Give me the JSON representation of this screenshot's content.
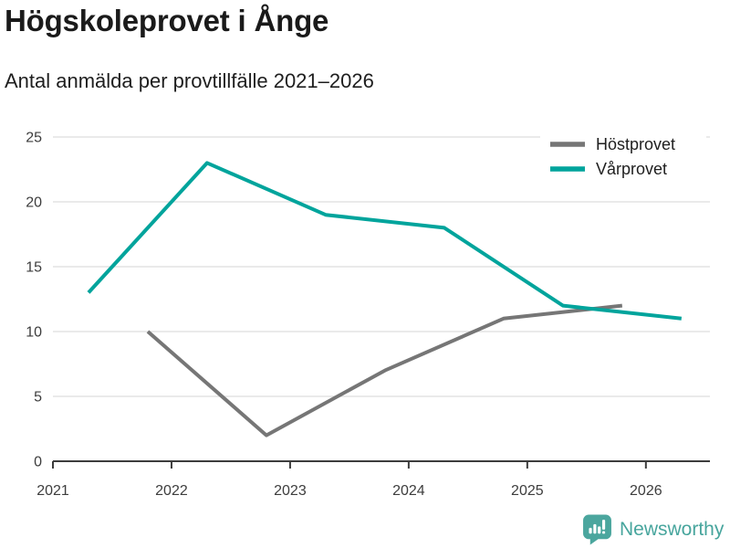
{
  "header": {
    "title": "Högskoleprovet i Ånge",
    "subtitle": "Antal anmälda per provtillfälle 2021–2026"
  },
  "chart_data": {
    "type": "line",
    "title": "Högskoleprovet i Ånge",
    "subtitle": "Antal anmälda per provtillfälle 2021–2026",
    "xlabel": "",
    "ylabel": "",
    "xlim": [
      2021,
      2026.54
    ],
    "ylim": [
      0,
      25
    ],
    "x_ticks": [
      2021,
      2022,
      2023,
      2024,
      2025,
      2026
    ],
    "y_ticks": [
      0,
      5,
      10,
      15,
      20,
      25
    ],
    "grid": "horizontal",
    "legend_position": "top-right",
    "colors": {
      "grid": "#e4e4e4",
      "axis": "#3d3d3d",
      "tick_label": "#3d3d3d",
      "legend_text": "#1f1f1f"
    },
    "series": [
      {
        "name": "Höstprovet",
        "color": "#767676",
        "x": [
          2021.8,
          2022.8,
          2023.8,
          2024.8,
          2025.8
        ],
        "values": [
          10,
          2,
          7,
          11,
          12
        ]
      },
      {
        "name": "Vårprovet",
        "color": "#00a49c",
        "x": [
          2021.3,
          2022.3,
          2023.3,
          2024.3,
          2025.3,
          2026.3
        ],
        "values": [
          13,
          23,
          19,
          18,
          12,
          11
        ]
      }
    ]
  },
  "footer": {
    "brand": "Newsworthy",
    "brand_color": "#47a59d",
    "logo_icon": "bar-chart-speech-bubble-icon"
  }
}
